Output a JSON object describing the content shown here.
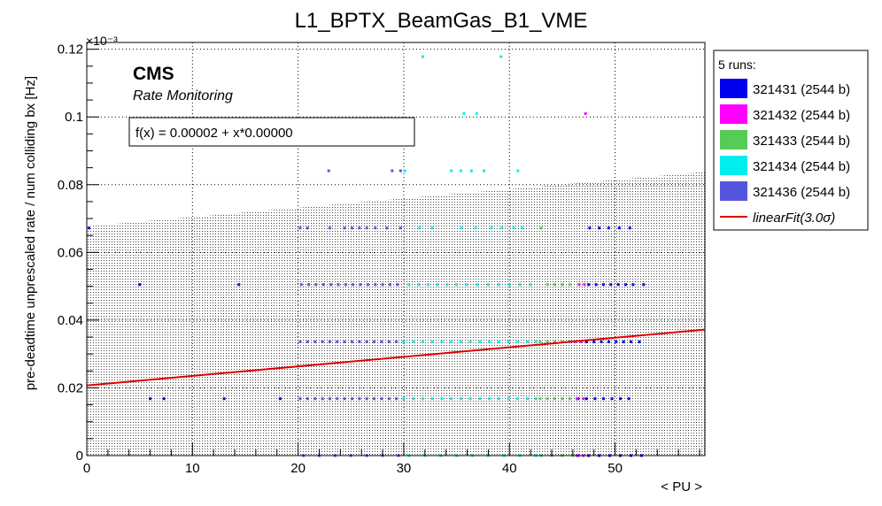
{
  "chart_data": {
    "type": "scatter",
    "title": "L1_BPTX_BeamGas_B1_VME",
    "xlabel": "< PU >",
    "ylabel": "pre-deadtime unprescaled rate / num colliding bx [Hz]",
    "y_multiplier": "×10⁻³",
    "xlim": [
      0,
      58.5
    ],
    "ylim": [
      0,
      0.000122
    ],
    "x_ticks": [
      0,
      10,
      20,
      30,
      40,
      50
    ],
    "x_tick_labels": [
      "0",
      "10",
      "20",
      "30",
      "40",
      "50"
    ],
    "y_ticks": [
      0,
      2e-05,
      4e-05,
      6e-05,
      8e-05,
      0.0001,
      0.00012
    ],
    "y_tick_labels": [
      "0",
      "0.02",
      "0.04",
      "0.06",
      "0.08",
      "0.1",
      "0.12"
    ],
    "grid": true,
    "annotations": {
      "brand": "CMS",
      "subtitle": "Rate Monitoring",
      "fit_box": "f(x) = 0.00002 + x*0.00000"
    },
    "fit": {
      "label": "linearFit(3.0σ)",
      "color": "#dd0000",
      "x": [
        0,
        58.5
      ],
      "y": [
        2.07e-05,
        3.72e-05
      ]
    },
    "band": {
      "x": [
        0,
        58.5
      ],
      "upper": [
        6.77e-05,
        8.38e-05
      ],
      "lower": [
        0,
        0
      ]
    },
    "legend": {
      "header": "5 runs:",
      "placement": "right",
      "entries": [
        "321431 (2544 b)",
        "321432 (2544 b)",
        "321433 (2544 b)",
        "321434 (2544 b)",
        "321436 (2544 b)",
        "linearFit(3.0σ)"
      ]
    },
    "series": [
      {
        "name": "321431 (2544 b)",
        "color": "#0000ee",
        "points": [
          [
            0.2,
            6.72e-05
          ],
          [
            5.0,
            5.05e-05
          ],
          [
            6.0,
            1.68e-05
          ],
          [
            7.3,
            1.68e-05
          ],
          [
            13.0,
            1.68e-05
          ],
          [
            14.4,
            5.05e-05
          ],
          [
            18.3,
            1.68e-05
          ],
          [
            47.6,
            6.72e-05
          ],
          [
            48.5,
            6.72e-05
          ],
          [
            49.4,
            6.72e-05
          ],
          [
            50.4,
            6.72e-05
          ],
          [
            51.4,
            6.72e-05
          ],
          [
            47.5,
            5.05e-05
          ],
          [
            48.2,
            5.05e-05
          ],
          [
            48.9,
            5.05e-05
          ],
          [
            49.6,
            5.05e-05
          ],
          [
            50.3,
            5.05e-05
          ],
          [
            51.0,
            5.05e-05
          ],
          [
            51.7,
            5.05e-05
          ],
          [
            52.7,
            5.05e-05
          ],
          [
            47.3,
            3.36e-05
          ],
          [
            48.0,
            3.36e-05
          ],
          [
            48.7,
            3.36e-05
          ],
          [
            49.4,
            3.36e-05
          ],
          [
            50.1,
            3.36e-05
          ],
          [
            50.8,
            3.36e-05
          ],
          [
            51.5,
            3.36e-05
          ],
          [
            52.3,
            3.36e-05
          ],
          [
            46.5,
            1.68e-05
          ],
          [
            47.3,
            1.68e-05
          ],
          [
            48.1,
            1.68e-05
          ],
          [
            48.9,
            1.68e-05
          ],
          [
            49.7,
            1.68e-05
          ],
          [
            50.5,
            1.68e-05
          ],
          [
            51.3,
            1.68e-05
          ],
          [
            46.5,
            0
          ],
          [
            47.5,
            0
          ],
          [
            48.5,
            0
          ],
          [
            49.5,
            0
          ],
          [
            50.5,
            0
          ],
          [
            51.5,
            0
          ],
          [
            52.5,
            0
          ]
        ]
      },
      {
        "name": "321432 (2544 b)",
        "color": "#ff00ff",
        "points": [
          [
            47.2,
            0.000101
          ],
          [
            46.6,
            5.05e-05
          ],
          [
            47.1,
            5.05e-05
          ],
          [
            46.2,
            3.36e-05
          ],
          [
            46.8,
            3.36e-05
          ],
          [
            46.4,
            1.68e-05
          ],
          [
            47.0,
            1.68e-05
          ],
          [
            46.4,
            0
          ],
          [
            47.0,
            0
          ]
        ]
      },
      {
        "name": "321433 (2544 b)",
        "color": "#55cc55",
        "points": [
          [
            43.0,
            6.72e-05
          ],
          [
            43.6,
            5.05e-05
          ],
          [
            44.3,
            5.05e-05
          ],
          [
            45.0,
            5.05e-05
          ],
          [
            45.7,
            5.05e-05
          ],
          [
            42.9,
            3.36e-05
          ],
          [
            43.6,
            3.36e-05
          ],
          [
            44.3,
            3.36e-05
          ],
          [
            45.0,
            3.36e-05
          ],
          [
            45.7,
            3.36e-05
          ],
          [
            42.9,
            1.68e-05
          ],
          [
            43.6,
            1.68e-05
          ],
          [
            44.3,
            1.68e-05
          ],
          [
            45.0,
            1.68e-05
          ],
          [
            45.7,
            1.68e-05
          ],
          [
            43.0,
            0
          ],
          [
            44.0,
            0
          ],
          [
            45.0,
            0
          ],
          [
            46.0,
            0
          ]
        ]
      },
      {
        "name": "321434 (2544 b)",
        "color": "#00eeee",
        "points": [
          [
            31.8,
            0.0001178
          ],
          [
            39.2,
            0.0001178
          ],
          [
            35.7,
            0.000101
          ],
          [
            36.9,
            0.000101
          ],
          [
            30.1,
            8.41e-05
          ],
          [
            34.5,
            8.41e-05
          ],
          [
            35.4,
            8.41e-05
          ],
          [
            36.4,
            8.41e-05
          ],
          [
            37.6,
            8.41e-05
          ],
          [
            40.8,
            8.41e-05
          ],
          [
            31.5,
            6.72e-05
          ],
          [
            32.7,
            6.72e-05
          ],
          [
            35.5,
            6.72e-05
          ],
          [
            36.8,
            6.72e-05
          ],
          [
            38.3,
            6.72e-05
          ],
          [
            39.3,
            6.72e-05
          ],
          [
            40.4,
            6.72e-05
          ],
          [
            41.2,
            6.72e-05
          ],
          [
            30.5,
            5.05e-05
          ],
          [
            31.4,
            5.05e-05
          ],
          [
            32.3,
            5.05e-05
          ],
          [
            33.2,
            5.05e-05
          ],
          [
            34.1,
            5.05e-05
          ],
          [
            35.0,
            5.05e-05
          ],
          [
            35.9,
            5.05e-05
          ],
          [
            37.0,
            5.05e-05
          ],
          [
            38.0,
            5.05e-05
          ],
          [
            39.0,
            5.05e-05
          ],
          [
            40.0,
            5.05e-05
          ],
          [
            41.0,
            5.05e-05
          ],
          [
            42.0,
            5.05e-05
          ],
          [
            30.0,
            3.36e-05
          ],
          [
            30.9,
            3.36e-05
          ],
          [
            31.8,
            3.36e-05
          ],
          [
            32.7,
            3.36e-05
          ],
          [
            33.6,
            3.36e-05
          ],
          [
            34.5,
            3.36e-05
          ],
          [
            35.4,
            3.36e-05
          ],
          [
            36.3,
            3.36e-05
          ],
          [
            37.2,
            3.36e-05
          ],
          [
            38.1,
            3.36e-05
          ],
          [
            39.0,
            3.36e-05
          ],
          [
            39.9,
            3.36e-05
          ],
          [
            40.8,
            3.36e-05
          ],
          [
            41.7,
            3.36e-05
          ],
          [
            42.5,
            3.36e-05
          ],
          [
            30.0,
            1.68e-05
          ],
          [
            30.9,
            1.68e-05
          ],
          [
            31.8,
            1.68e-05
          ],
          [
            32.7,
            1.68e-05
          ],
          [
            33.6,
            1.68e-05
          ],
          [
            34.5,
            1.68e-05
          ],
          [
            35.4,
            1.68e-05
          ],
          [
            36.3,
            1.68e-05
          ],
          [
            37.2,
            1.68e-05
          ],
          [
            38.1,
            1.68e-05
          ],
          [
            39.0,
            1.68e-05
          ],
          [
            39.9,
            1.68e-05
          ],
          [
            40.8,
            1.68e-05
          ],
          [
            41.7,
            1.68e-05
          ],
          [
            42.5,
            1.68e-05
          ],
          [
            30.5,
            0
          ],
          [
            32.0,
            0
          ],
          [
            33.5,
            0
          ],
          [
            35.0,
            0
          ],
          [
            36.5,
            0
          ],
          [
            38.0,
            0
          ],
          [
            39.5,
            0
          ],
          [
            41.0,
            0
          ],
          [
            42.5,
            0
          ]
        ]
      },
      {
        "name": "321436 (2544 b)",
        "color": "#5555dd",
        "points": [
          [
            22.9,
            8.41e-05
          ],
          [
            28.9,
            8.41e-05
          ],
          [
            29.7,
            8.41e-05
          ],
          [
            20.2,
            6.72e-05
          ],
          [
            20.9,
            6.72e-05
          ],
          [
            23.0,
            6.72e-05
          ],
          [
            24.4,
            6.72e-05
          ],
          [
            25.1,
            6.72e-05
          ],
          [
            25.8,
            6.72e-05
          ],
          [
            26.5,
            6.72e-05
          ],
          [
            27.3,
            6.72e-05
          ],
          [
            28.4,
            6.72e-05
          ],
          [
            29.7,
            6.72e-05
          ],
          [
            20.3,
            5.05e-05
          ],
          [
            21.0,
            5.05e-05
          ],
          [
            21.7,
            5.05e-05
          ],
          [
            22.4,
            5.05e-05
          ],
          [
            23.1,
            5.05e-05
          ],
          [
            23.8,
            5.05e-05
          ],
          [
            24.5,
            5.05e-05
          ],
          [
            25.2,
            5.05e-05
          ],
          [
            25.9,
            5.05e-05
          ],
          [
            26.6,
            5.05e-05
          ],
          [
            27.3,
            5.05e-05
          ],
          [
            28.0,
            5.05e-05
          ],
          [
            28.7,
            5.05e-05
          ],
          [
            29.4,
            5.05e-05
          ],
          [
            20.2,
            3.36e-05
          ],
          [
            20.9,
            3.36e-05
          ],
          [
            21.6,
            3.36e-05
          ],
          [
            22.3,
            3.36e-05
          ],
          [
            23.0,
            3.36e-05
          ],
          [
            23.7,
            3.36e-05
          ],
          [
            24.4,
            3.36e-05
          ],
          [
            25.1,
            3.36e-05
          ],
          [
            25.8,
            3.36e-05
          ],
          [
            26.5,
            3.36e-05
          ],
          [
            27.2,
            3.36e-05
          ],
          [
            27.9,
            3.36e-05
          ],
          [
            28.6,
            3.36e-05
          ],
          [
            29.3,
            3.36e-05
          ],
          [
            20.2,
            1.68e-05
          ],
          [
            20.9,
            1.68e-05
          ],
          [
            21.6,
            1.68e-05
          ],
          [
            22.3,
            1.68e-05
          ],
          [
            23.0,
            1.68e-05
          ],
          [
            23.7,
            1.68e-05
          ],
          [
            24.4,
            1.68e-05
          ],
          [
            25.1,
            1.68e-05
          ],
          [
            25.8,
            1.68e-05
          ],
          [
            26.5,
            1.68e-05
          ],
          [
            27.2,
            1.68e-05
          ],
          [
            27.9,
            1.68e-05
          ],
          [
            28.6,
            1.68e-05
          ],
          [
            29.3,
            1.68e-05
          ],
          [
            20.5,
            0
          ],
          [
            22.0,
            0
          ],
          [
            23.5,
            0
          ],
          [
            25.0,
            0
          ],
          [
            26.5,
            0
          ],
          [
            28.0,
            0
          ],
          [
            29.5,
            0
          ]
        ]
      }
    ]
  }
}
